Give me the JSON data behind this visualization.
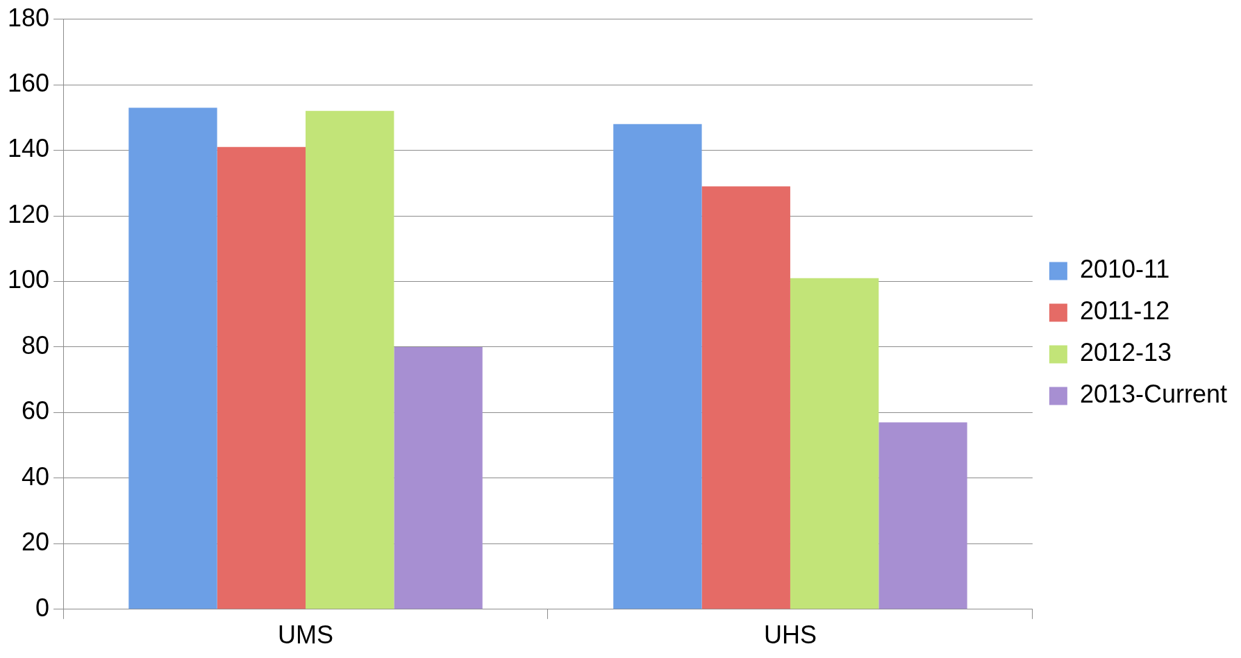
{
  "chart_data": {
    "type": "bar",
    "categories": [
      "UMS",
      "UHS"
    ],
    "series": [
      {
        "name": "2010-11",
        "color": "#6c9fe6",
        "values": [
          153,
          148
        ]
      },
      {
        "name": "2011-12",
        "color": "#e56b66",
        "values": [
          141,
          129
        ]
      },
      {
        "name": "2012-13",
        "color": "#c2e478",
        "values": [
          152,
          101
        ]
      },
      {
        "name": "2013-Current",
        "color": "#a78fd2",
        "values": [
          80,
          57
        ]
      }
    ],
    "ylim": [
      0,
      180
    ],
    "yticks": [
      0,
      20,
      40,
      60,
      80,
      100,
      120,
      140,
      160,
      180
    ],
    "grid": "y",
    "legend": "right"
  }
}
